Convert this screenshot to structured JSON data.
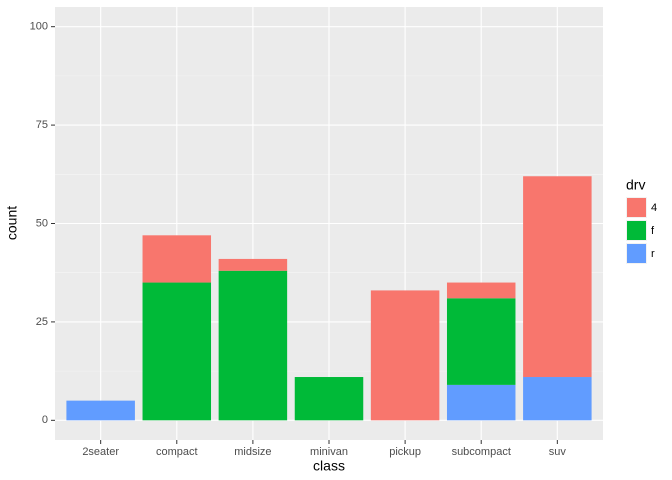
{
  "chart_data": {
    "type": "stacked_bar",
    "x_label": "class",
    "y_label": "count",
    "categories": [
      "2seater",
      "compact",
      "midsize",
      "minivan",
      "pickup",
      "subcompact",
      "suv"
    ],
    "series": [
      {
        "name": "r",
        "color": "#619CFF",
        "values": [
          5,
          0,
          0,
          0,
          0,
          9,
          11
        ]
      },
      {
        "name": "f",
        "color": "#00BA38",
        "values": [
          0,
          35,
          38,
          11,
          0,
          22,
          0
        ]
      },
      {
        "name": "4",
        "color": "#F8766D",
        "values": [
          0,
          12,
          3,
          0,
          33,
          4,
          51
        ]
      }
    ],
    "legend_title": "drv",
    "legend_order": [
      2,
      1,
      0
    ],
    "ylim": [
      -5,
      105
    ],
    "yticks": [
      0,
      25,
      50,
      75,
      100
    ],
    "grid": true,
    "legend_position": "right"
  }
}
